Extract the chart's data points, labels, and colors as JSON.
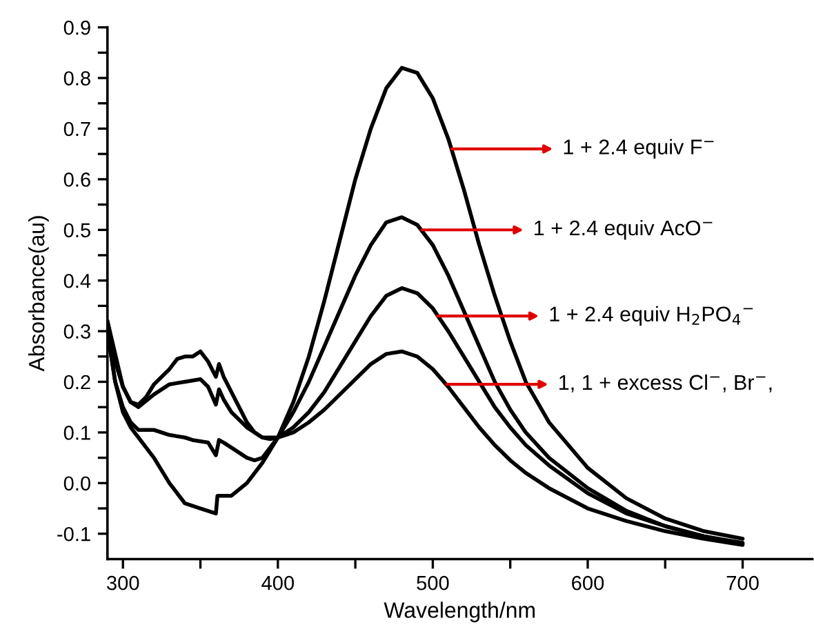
{
  "chart_data": {
    "type": "line",
    "xlabel": "Wavelength/nm",
    "ylabel": "Absorbance(au)",
    "xlim": [
      290,
      745
    ],
    "ylim": [
      -0.15,
      0.9
    ],
    "xticks": [
      300,
      {
        "value": 350,
        "label": null
      },
      400,
      {
        "value": 450,
        "label": null
      },
      500,
      {
        "value": 550,
        "label": null
      },
      600,
      {
        "value": 650,
        "label": null
      },
      700
    ],
    "yticks": [
      {
        "value": -0.1,
        "label": "-0.1"
      },
      {
        "value": -0.05,
        "label": null
      },
      {
        "value": 0.0,
        "label": "0.0"
      },
      {
        "value": 0.05,
        "label": null
      },
      {
        "value": 0.1,
        "label": "0.1"
      },
      {
        "value": 0.15,
        "label": null
      },
      {
        "value": 0.2,
        "label": "0.2"
      },
      {
        "value": 0.25,
        "label": null
      },
      {
        "value": 0.3,
        "label": "0.3"
      },
      {
        "value": 0.35,
        "label": null
      },
      {
        "value": 0.4,
        "label": "0.4"
      },
      {
        "value": 0.45,
        "label": null
      },
      {
        "value": 0.5,
        "label": "0.5"
      },
      {
        "value": 0.55,
        "label": null
      },
      {
        "value": 0.6,
        "label": "0.6"
      },
      {
        "value": 0.65,
        "label": null
      },
      {
        "value": 0.7,
        "label": "0.7"
      },
      {
        "value": 0.75,
        "label": null
      },
      {
        "value": 0.8,
        "label": "0.8"
      },
      {
        "value": 0.85,
        "label": null
      },
      {
        "value": 0.9,
        "label": "0.9"
      }
    ],
    "annotations": [
      {
        "text": "1 + 2.4 equiv F$^{−}$",
        "x": 512,
        "y": 0.66
      },
      {
        "text": "1 + 2.4 equiv AcO$^{−}$",
        "x": 493,
        "y": 0.5
      },
      {
        "text": "1 + 2.4 equiv H$_{2}$PO$_{4}$$^{−}$",
        "x": 503,
        "y": 0.33
      },
      {
        "text": "1, 1 + excess Cl$^{−}$, Br$^{−}$,",
        "x": 509,
        "y": 0.195
      }
    ],
    "grid": false,
    "legend": false,
    "marker": "none",
    "line_style": "solid",
    "series": [
      {
        "color": "#000000",
        "x": [
          290,
          295,
          300,
          305,
          310,
          320,
          330,
          340,
          350,
          360,
          361,
          370,
          380,
          390,
          400,
          410,
          420,
          430,
          440,
          450,
          460,
          470,
          480,
          490,
          500,
          510,
          520,
          530,
          540,
          550,
          560,
          575,
          600,
          625,
          650,
          675,
          700
        ],
        "values": [
          0.3,
          0.2,
          0.14,
          0.11,
          0.09,
          0.05,
          0.0,
          -0.04,
          -0.05,
          -0.06,
          -0.025,
          -0.025,
          0.0,
          0.04,
          0.09,
          0.16,
          0.25,
          0.36,
          0.48,
          0.6,
          0.7,
          0.78,
          0.82,
          0.81,
          0.76,
          0.68,
          0.58,
          0.47,
          0.37,
          0.28,
          0.2,
          0.12,
          0.03,
          -0.03,
          -0.07,
          -0.095,
          -0.11
        ]
      },
      {
        "color": "#000000",
        "x": [
          290,
          295,
          300,
          305,
          310,
          320,
          330,
          340,
          345,
          355,
          360,
          362,
          365,
          370,
          380,
          385,
          390,
          400,
          410,
          420,
          430,
          440,
          450,
          460,
          470,
          480,
          490,
          500,
          510,
          520,
          530,
          540,
          550,
          560,
          575,
          600,
          625,
          650,
          675,
          700
        ],
        "values": [
          0.3,
          0.2,
          0.15,
          0.12,
          0.105,
          0.105,
          0.095,
          0.09,
          0.085,
          0.08,
          0.055,
          0.085,
          0.08,
          0.07,
          0.05,
          0.045,
          0.05,
          0.09,
          0.14,
          0.2,
          0.27,
          0.34,
          0.41,
          0.47,
          0.515,
          0.525,
          0.51,
          0.47,
          0.41,
          0.34,
          0.27,
          0.2,
          0.145,
          0.1,
          0.05,
          -0.01,
          -0.055,
          -0.085,
          -0.105,
          -0.118
        ]
      },
      {
        "color": "#000000",
        "x": [
          290,
          300,
          305,
          310,
          320,
          330,
          340,
          350,
          355,
          360,
          362,
          365,
          370,
          380,
          390,
          400,
          410,
          420,
          430,
          440,
          450,
          460,
          470,
          480,
          490,
          500,
          510,
          520,
          530,
          540,
          550,
          560,
          575,
          600,
          625,
          650,
          675,
          700
        ],
        "values": [
          0.32,
          0.19,
          0.16,
          0.15,
          0.175,
          0.195,
          0.2,
          0.205,
          0.19,
          0.155,
          0.185,
          0.165,
          0.14,
          0.11,
          0.09,
          0.09,
          0.11,
          0.14,
          0.18,
          0.23,
          0.28,
          0.33,
          0.37,
          0.385,
          0.375,
          0.345,
          0.3,
          0.25,
          0.2,
          0.15,
          0.11,
          0.075,
          0.035,
          -0.02,
          -0.06,
          -0.085,
          -0.105,
          -0.12
        ]
      },
      {
        "color": "#000000",
        "x": [
          290,
          295,
          300,
          305,
          310,
          315,
          320,
          325,
          330,
          335,
          340,
          345,
          350,
          355,
          360,
          362,
          365,
          370,
          375,
          380,
          385,
          390,
          395,
          400,
          410,
          420,
          430,
          440,
          450,
          460,
          470,
          480,
          490,
          500,
          510,
          520,
          530,
          540,
          550,
          560,
          575,
          600,
          625,
          650,
          675,
          700
        ],
        "values": [
          0.32,
          0.24,
          0.19,
          0.16,
          0.155,
          0.17,
          0.195,
          0.21,
          0.225,
          0.245,
          0.25,
          0.25,
          0.26,
          0.24,
          0.21,
          0.235,
          0.21,
          0.18,
          0.15,
          0.12,
          0.1,
          0.09,
          0.087,
          0.09,
          0.1,
          0.12,
          0.145,
          0.175,
          0.205,
          0.235,
          0.255,
          0.26,
          0.25,
          0.225,
          0.19,
          0.15,
          0.11,
          0.075,
          0.045,
          0.02,
          -0.01,
          -0.05,
          -0.075,
          -0.095,
          -0.11,
          -0.122
        ]
      }
    ]
  }
}
